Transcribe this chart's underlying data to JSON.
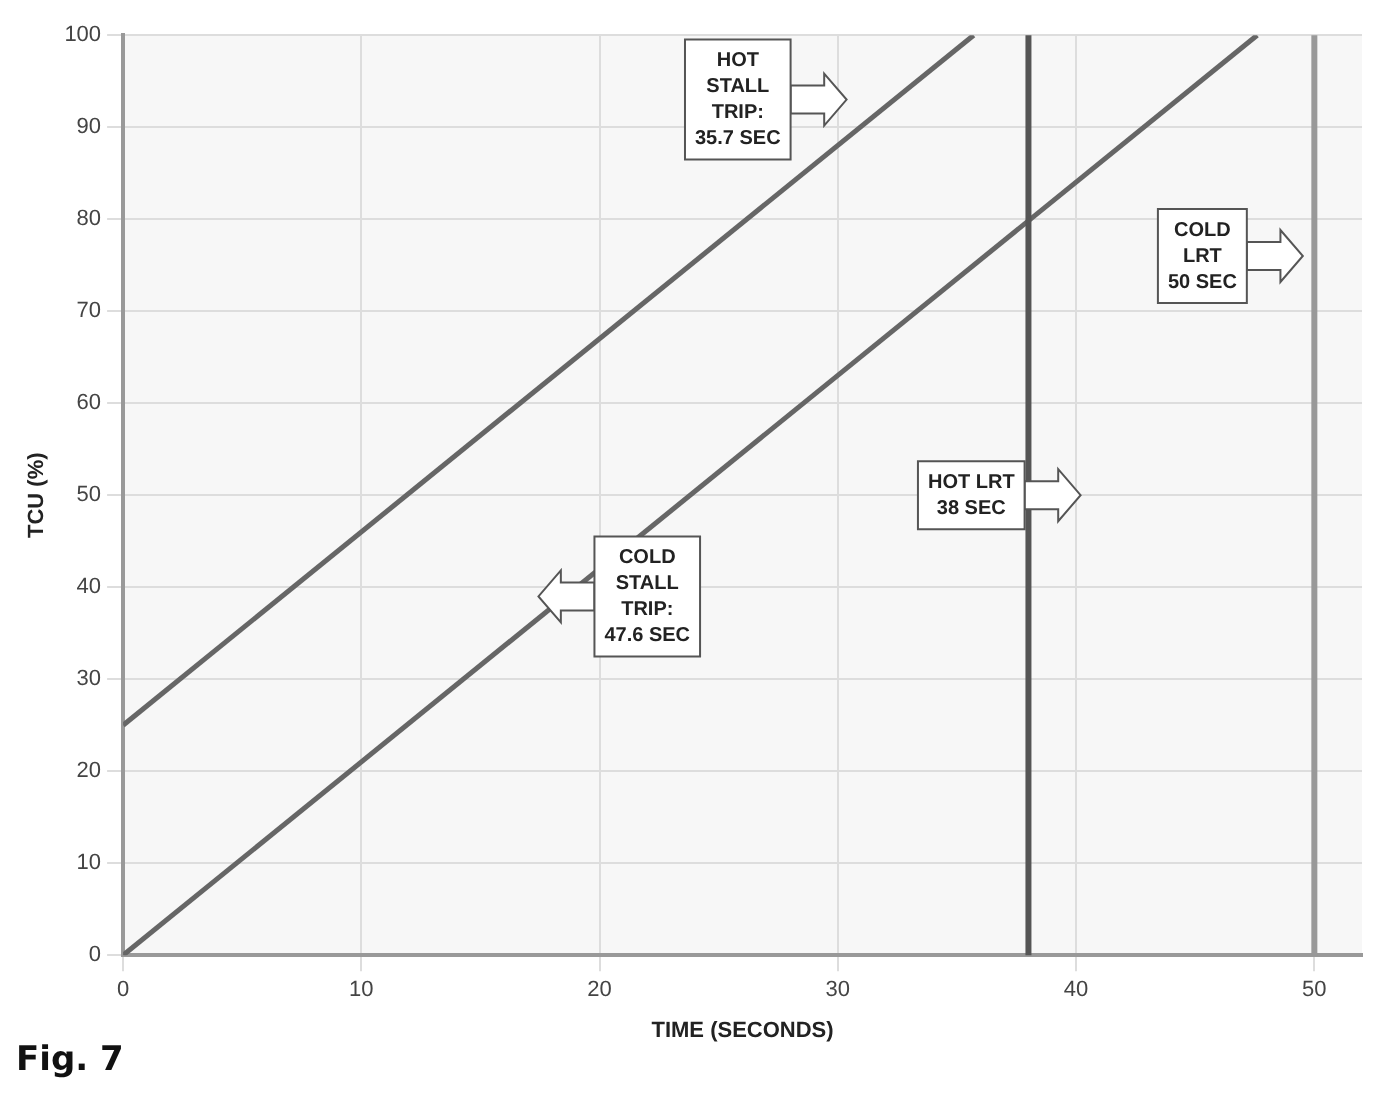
{
  "chart_data": {
    "type": "line",
    "xlabel": "TIME (SECONDS)",
    "ylabel": "TCU (%)",
    "series": [
      {
        "color": "#666666",
        "x": [
          0,
          35.7
        ],
        "values": [
          25,
          100
        ]
      },
      {
        "color": "#666666",
        "x": [
          0,
          47.6
        ],
        "values": [
          0,
          100
        ]
      }
    ],
    "xlim": [
      0,
      52
    ],
    "xticks": [
      0,
      10,
      20,
      30,
      40,
      50
    ],
    "ylim": [
      0,
      100
    ],
    "yticks": [
      0,
      10,
      20,
      30,
      40,
      50,
      60,
      70,
      80,
      90,
      100
    ],
    "grid": true,
    "legend": false,
    "marker": "none",
    "line_style": "solid",
    "ref_lines": [
      {
        "axis": "x",
        "value": 38,
        "color": "#555555"
      },
      {
        "axis": "x",
        "value": 50,
        "color": "#999999"
      }
    ],
    "annotations": [
      "HOT\nSTALL\nTRIP:\n35.7 SEC",
      "COLD\nLRT\n50 SEC",
      "HOT LRT\n38 SEC",
      "COLD\nSTALL\nTRIP:\n47.6 SEC",
      "Fig. 7"
    ]
  }
}
